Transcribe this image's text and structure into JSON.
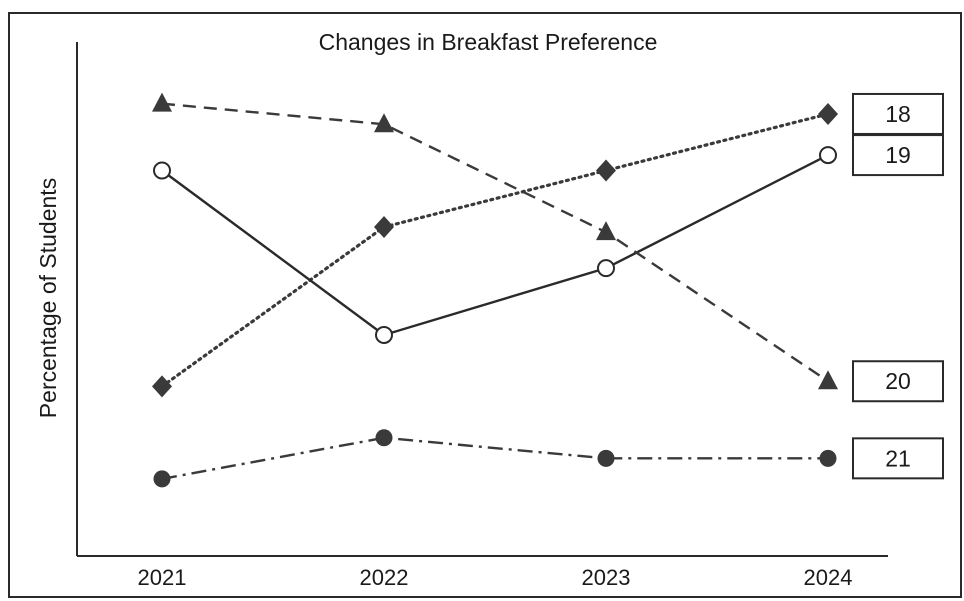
{
  "chart_data": {
    "type": "line",
    "title": "Changes in Breakfast Preference",
    "xlabel": "",
    "ylabel": "Percentage of Students",
    "categories": [
      "2021",
      "2022",
      "2023",
      "2024"
    ],
    "ylim": [
      0,
      100
    ],
    "grid": false,
    "series": [
      {
        "name": "18",
        "marker": "diamond",
        "line": "dotted",
        "color": "#3a3a3a",
        "values": [
          33,
          64,
          75,
          86
        ]
      },
      {
        "name": "19",
        "marker": "open-circle",
        "line": "solid",
        "color": "#2a2a2a",
        "values": [
          75,
          43,
          56,
          78
        ]
      },
      {
        "name": "20",
        "marker": "triangle",
        "line": "dashed",
        "color": "#3a3a3a",
        "values": [
          88,
          84,
          63,
          34
        ]
      },
      {
        "name": "21",
        "marker": "filled-circle",
        "line": "dash-dot",
        "color": "#3a3a3a",
        "values": [
          15,
          23,
          19,
          19
        ]
      }
    ]
  }
}
